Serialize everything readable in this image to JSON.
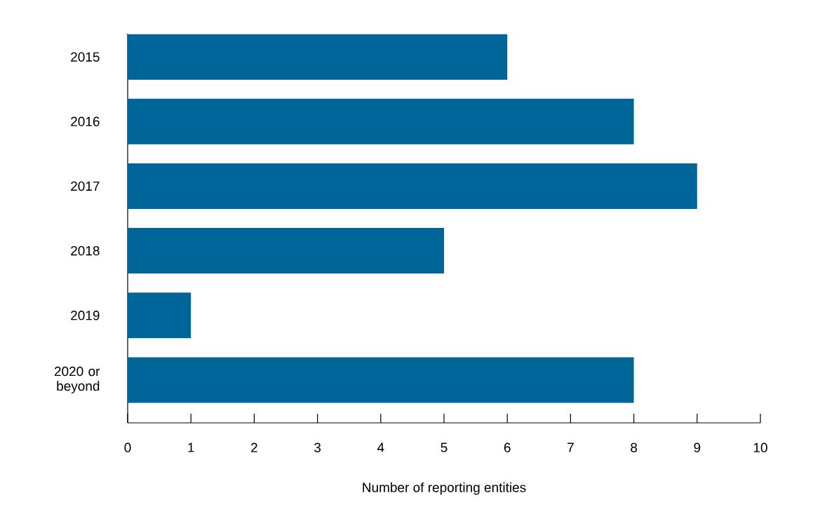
{
  "chart_data": {
    "type": "bar",
    "orientation": "horizontal",
    "categories": [
      "2015",
      "2016",
      "2017",
      "2018",
      "2019",
      "2020 or beyond"
    ],
    "values": [
      6,
      8,
      9,
      5,
      1,
      8
    ],
    "color": "#006699",
    "xlabel": "Number of reporting entities",
    "xlim": [
      0,
      10
    ],
    "xticks": [
      0,
      1,
      2,
      3,
      4,
      5,
      6,
      7,
      8,
      9,
      10
    ]
  }
}
